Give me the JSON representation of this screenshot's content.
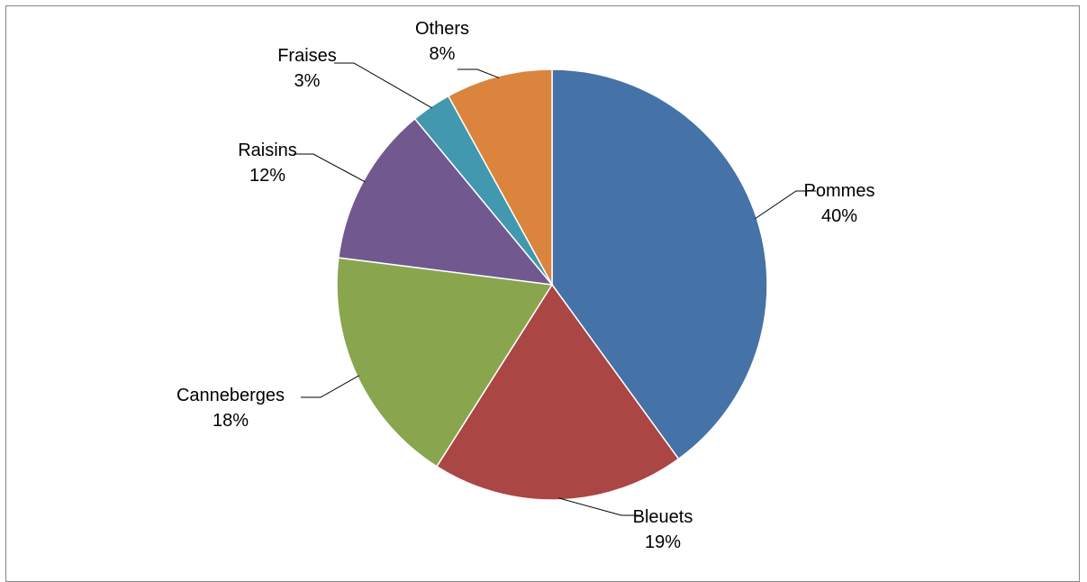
{
  "chart_data": {
    "type": "pie",
    "title": "",
    "start_angle_deg": 0,
    "direction": "clockwise",
    "legend": "none",
    "data_labels": "category-and-percent",
    "slices": [
      {
        "label": "Pommes",
        "value": 40,
        "value_label": "40%",
        "color": "#4572A7"
      },
      {
        "label": "Bleuets",
        "value": 19,
        "value_label": "19%",
        "color": "#AA4643"
      },
      {
        "label": "Canneberges",
        "value": 18,
        "value_label": "18%",
        "color": "#89A54E"
      },
      {
        "label": "Raisins",
        "value": 12,
        "value_label": "12%",
        "color": "#71588F"
      },
      {
        "label": "Fraises",
        "value": 3,
        "value_label": "3%",
        "color": "#4198AF"
      },
      {
        "label": "Others",
        "value": 8,
        "value_label": "8%",
        "color": "#DB843D"
      }
    ]
  }
}
